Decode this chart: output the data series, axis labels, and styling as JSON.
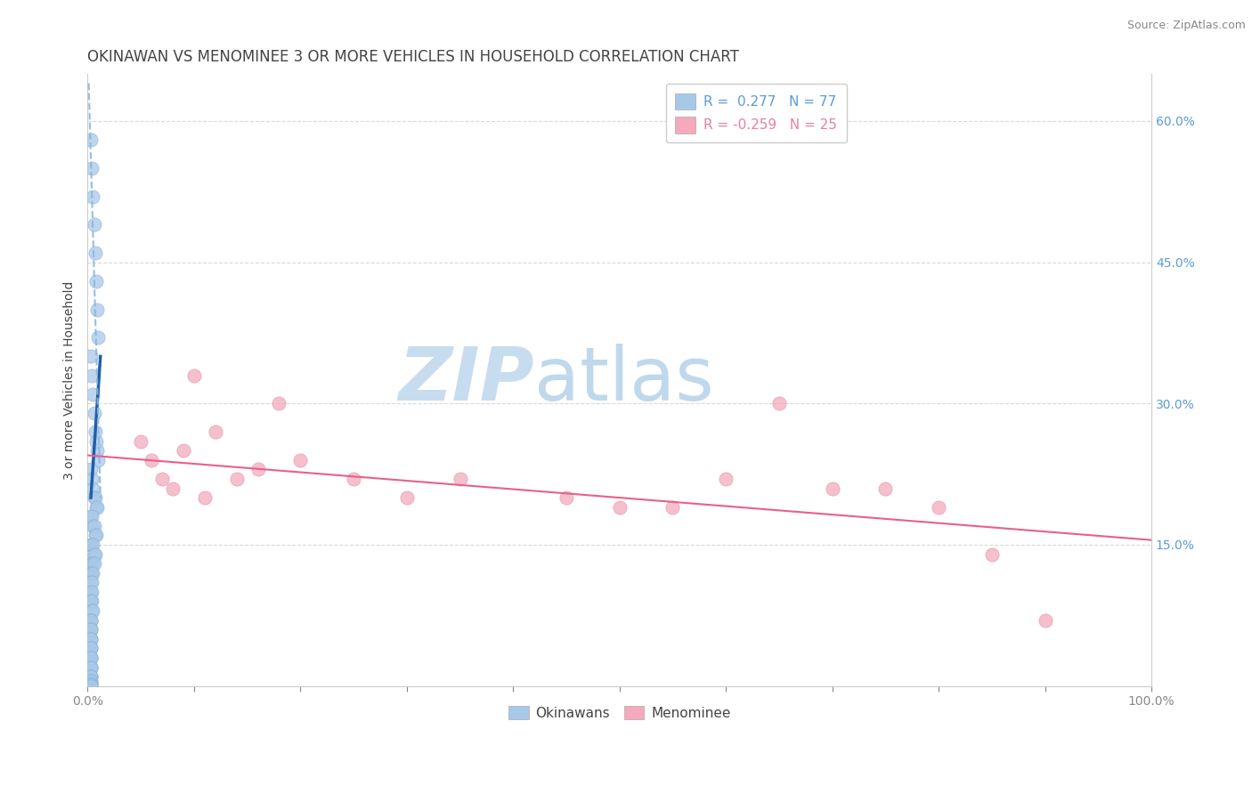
{
  "title": "OKINAWAN VS MENOMINEE 3 OR MORE VEHICLES IN HOUSEHOLD CORRELATION CHART",
  "source": "Source: ZipAtlas.com",
  "ylabel": "3 or more Vehicles in Household",
  "x_min": 0.0,
  "x_max": 1.0,
  "y_min": 0.0,
  "y_max": 0.65,
  "x_ticks": [
    0.0,
    0.1,
    0.2,
    0.3,
    0.4,
    0.5,
    0.6,
    0.7,
    0.8,
    0.9,
    1.0
  ],
  "x_tick_labels_sparse": {
    "0.0": "0.0%",
    "1.0": "100.0%"
  },
  "y_ticks": [
    0.15,
    0.3,
    0.45,
    0.6
  ],
  "right_y_tick_labels": [
    "15.0%",
    "30.0%",
    "45.0%",
    "60.0%"
  ],
  "legend_R_blue": "0.277",
  "legend_N_blue": "77",
  "legend_R_pink": "-0.259",
  "legend_N_pink": "25",
  "legend_label_blue": "Okinawans",
  "legend_label_pink": "Menominee",
  "blue_scatter_x": [
    0.003,
    0.004,
    0.005,
    0.006,
    0.007,
    0.008,
    0.009,
    0.01,
    0.003,
    0.004,
    0.005,
    0.006,
    0.007,
    0.008,
    0.009,
    0.01,
    0.003,
    0.004,
    0.005,
    0.006,
    0.007,
    0.008,
    0.009,
    0.003,
    0.004,
    0.005,
    0.006,
    0.007,
    0.008,
    0.003,
    0.004,
    0.005,
    0.006,
    0.007,
    0.003,
    0.004,
    0.005,
    0.006,
    0.003,
    0.004,
    0.005,
    0.003,
    0.004,
    0.003,
    0.004,
    0.003,
    0.003,
    0.004,
    0.004,
    0.005,
    0.003,
    0.003,
    0.003,
    0.003,
    0.003,
    0.003,
    0.003,
    0.003,
    0.003,
    0.003,
    0.003,
    0.003,
    0.003,
    0.003,
    0.003,
    0.003,
    0.003,
    0.003,
    0.003,
    0.003,
    0.003,
    0.003,
    0.003,
    0.003,
    0.003,
    0.003,
    0.003
  ],
  "blue_scatter_y": [
    0.58,
    0.55,
    0.52,
    0.49,
    0.46,
    0.43,
    0.4,
    0.37,
    0.35,
    0.33,
    0.31,
    0.29,
    0.27,
    0.26,
    0.25,
    0.24,
    0.23,
    0.22,
    0.21,
    0.2,
    0.2,
    0.19,
    0.19,
    0.18,
    0.18,
    0.17,
    0.17,
    0.16,
    0.16,
    0.15,
    0.15,
    0.15,
    0.14,
    0.14,
    0.13,
    0.13,
    0.13,
    0.13,
    0.12,
    0.12,
    0.12,
    0.11,
    0.11,
    0.1,
    0.1,
    0.09,
    0.09,
    0.09,
    0.08,
    0.08,
    0.07,
    0.07,
    0.07,
    0.06,
    0.06,
    0.06,
    0.05,
    0.05,
    0.05,
    0.04,
    0.04,
    0.04,
    0.03,
    0.03,
    0.03,
    0.02,
    0.02,
    0.02,
    0.01,
    0.01,
    0.01,
    0.005,
    0.005,
    0.003,
    0.002,
    0.001,
    0.0
  ],
  "pink_scatter_x": [
    0.05,
    0.06,
    0.07,
    0.08,
    0.09,
    0.1,
    0.11,
    0.12,
    0.14,
    0.16,
    0.18,
    0.2,
    0.25,
    0.3,
    0.35,
    0.45,
    0.5,
    0.55,
    0.6,
    0.65,
    0.7,
    0.75,
    0.8,
    0.85,
    0.9
  ],
  "pink_scatter_y": [
    0.26,
    0.24,
    0.22,
    0.21,
    0.25,
    0.33,
    0.2,
    0.27,
    0.22,
    0.23,
    0.3,
    0.24,
    0.22,
    0.2,
    0.22,
    0.2,
    0.19,
    0.19,
    0.22,
    0.3,
    0.21,
    0.21,
    0.19,
    0.14,
    0.07
  ],
  "blue_solid_line_x": [
    0.003,
    0.012
  ],
  "blue_solid_line_y": [
    0.2,
    0.35
  ],
  "blue_dash_line_x": [
    0.001,
    0.012
  ],
  "blue_dash_line_y": [
    0.64,
    0.2
  ],
  "pink_line_x": [
    0.0,
    1.0
  ],
  "pink_line_y": [
    0.245,
    0.155
  ],
  "scatter_color_blue": "#A8C8E8",
  "scatter_color_pink": "#F4AABC",
  "line_color_blue": "#2060A8",
  "line_color_pink": "#E8608A",
  "dash_color_blue": "#88B8E0",
  "background_color": "#FFFFFF",
  "grid_color": "#D0D0D0",
  "title_fontsize": 12,
  "axis_label_fontsize": 10,
  "tick_fontsize": 10,
  "legend_fontsize": 11,
  "legend_color_blue": "#5B9BD5",
  "legend_color_pink": "#E87FA0",
  "watermark_zip_color": "#C8DCF0",
  "watermark_atlas_color": "#C0D8EC",
  "watermark_fontsize": 60
}
